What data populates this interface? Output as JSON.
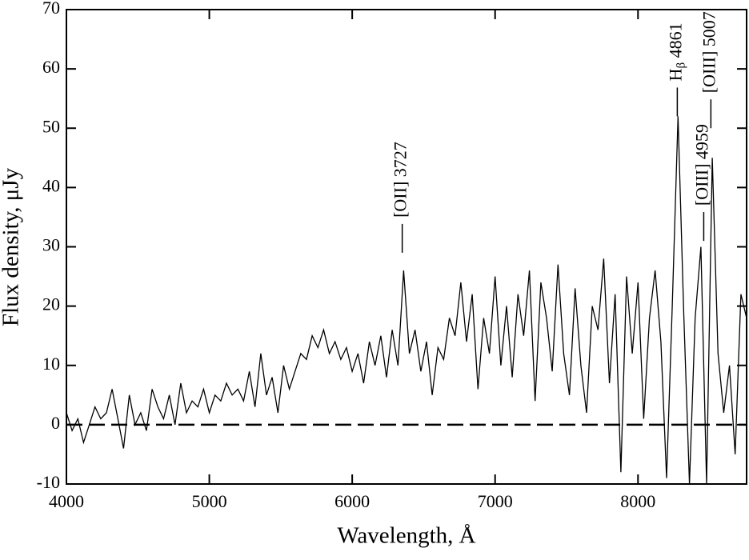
{
  "chart_data": {
    "type": "line",
    "xlabel": "Wavelength, Å",
    "ylabel": "Flux density, μJy",
    "x": [
      4000,
      4040,
      4080,
      4120,
      4160,
      4200,
      4240,
      4280,
      4320,
      4360,
      4400,
      4440,
      4480,
      4520,
      4560,
      4600,
      4640,
      4680,
      4720,
      4760,
      4800,
      4840,
      4880,
      4920,
      4960,
      5000,
      5040,
      5080,
      5120,
      5160,
      5200,
      5240,
      5280,
      5320,
      5360,
      5400,
      5440,
      5480,
      5520,
      5560,
      5600,
      5640,
      5680,
      5720,
      5760,
      5800,
      5840,
      5880,
      5920,
      5960,
      6000,
      6040,
      6080,
      6120,
      6160,
      6200,
      6240,
      6280,
      6320,
      6360,
      6400,
      6440,
      6480,
      6520,
      6560,
      6600,
      6640,
      6680,
      6720,
      6760,
      6800,
      6840,
      6880,
      6920,
      6960,
      7000,
      7040,
      7080,
      7120,
      7160,
      7200,
      7240,
      7280,
      7320,
      7360,
      7400,
      7440,
      7480,
      7520,
      7560,
      7600,
      7640,
      7680,
      7720,
      7760,
      7800,
      7840,
      7880,
      7920,
      7960,
      8000,
      8040,
      8080,
      8120,
      8160,
      8200,
      8240,
      8280,
      8320,
      8360,
      8400,
      8440,
      8480,
      8520,
      8560,
      8600,
      8640,
      8680,
      8720,
      8760
    ],
    "series": [
      {
        "color": "#000000",
        "values": [
          2,
          -1,
          1,
          -3,
          0,
          3,
          1,
          2,
          6,
          1,
          -4,
          5,
          0,
          2,
          -1,
          6,
          3,
          1,
          5,
          0,
          7,
          2,
          4,
          3,
          6,
          2,
          5,
          4,
          7,
          5,
          6,
          4,
          9,
          3,
          12,
          5,
          8,
          2,
          10,
          6,
          9,
          12,
          11,
          15,
          13,
          16,
          12,
          14,
          11,
          13,
          9,
          12,
          7,
          14,
          10,
          15,
          8,
          16,
          10,
          26,
          12,
          16,
          9,
          14,
          5,
          13,
          11,
          18,
          15,
          24,
          14,
          22,
          6,
          18,
          12,
          25,
          10,
          20,
          8,
          22,
          15,
          26,
          4,
          24,
          18,
          9,
          27,
          12,
          5,
          23,
          10,
          2,
          20,
          16,
          28,
          7,
          22,
          -8,
          25,
          12,
          24,
          1,
          18,
          26,
          14,
          -9,
          20,
          52,
          19,
          -10,
          18,
          30,
          -10,
          45,
          12,
          2,
          10,
          -5,
          22,
          18
        ]
      }
    ],
    "reference_line": 0,
    "annotations": [
      {
        "label": "[OII] 3727",
        "x": 6350,
        "y": 29
      },
      {
        "label": "H",
        "subscript": "β",
        "rest": " 4861",
        "x": 8275,
        "y": 52
      },
      {
        "label": "[OIII] 4959",
        "x": 8460,
        "y": 31
      },
      {
        "label": "[OIII] 5007",
        "x": 8510,
        "y": 50
      }
    ],
    "xlim": [
      4000,
      8760
    ],
    "xticks": [
      4000,
      5000,
      6000,
      7000,
      8000
    ],
    "ylim": [
      -10,
      70
    ],
    "yticks": [
      -10,
      0,
      10,
      20,
      30,
      40,
      50,
      60,
      70
    ]
  }
}
